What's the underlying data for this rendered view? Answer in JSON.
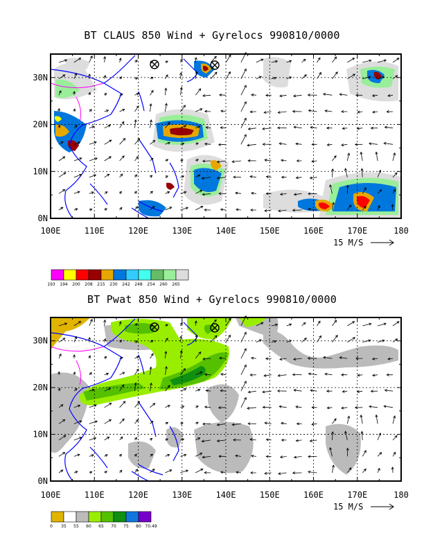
{
  "panels": [
    {
      "title": "BT CLAUS 850 Wind + Gyrelocs 990810/0000",
      "colorbar_labels": [
        "193",
        "194",
        "200",
        "208",
        "215",
        "230",
        "242",
        "248",
        "254",
        "260",
        "265"
      ],
      "colorbar_colors": [
        "#ff00ff",
        "#ffff00",
        "#ff0000",
        "#990000",
        "#e6a800",
        "#0077dd",
        "#33ccff",
        "#44ffee",
        "#66bb66",
        "#99ee99",
        "#dddddd"
      ]
    },
    {
      "title": "BT Pwat 850 Wind + Gyrelocs 990810/0000",
      "colorbar_labels": [
        "0",
        "35",
        "55",
        "60",
        "65",
        "70",
        "75",
        "80",
        "70.49"
      ],
      "colorbar_colors": [
        "#e0b400",
        "#ffffff",
        "#bbbbbb",
        "#99ee00",
        "#55c000",
        "#109010",
        "#1177dd",
        "#7700cc"
      ]
    }
  ],
  "axes": {
    "lon_labels": [
      "100E",
      "110E",
      "120E",
      "130E",
      "140E",
      "150E",
      "160E",
      "170E",
      "180"
    ],
    "lat_labels": [
      "0N",
      "10N",
      "20N",
      "30N"
    ],
    "scale_label": "15 M/S"
  },
  "colors": {
    "coast": "#0000ff",
    "border": "#ff00ff",
    "arrow": "#000000"
  }
}
